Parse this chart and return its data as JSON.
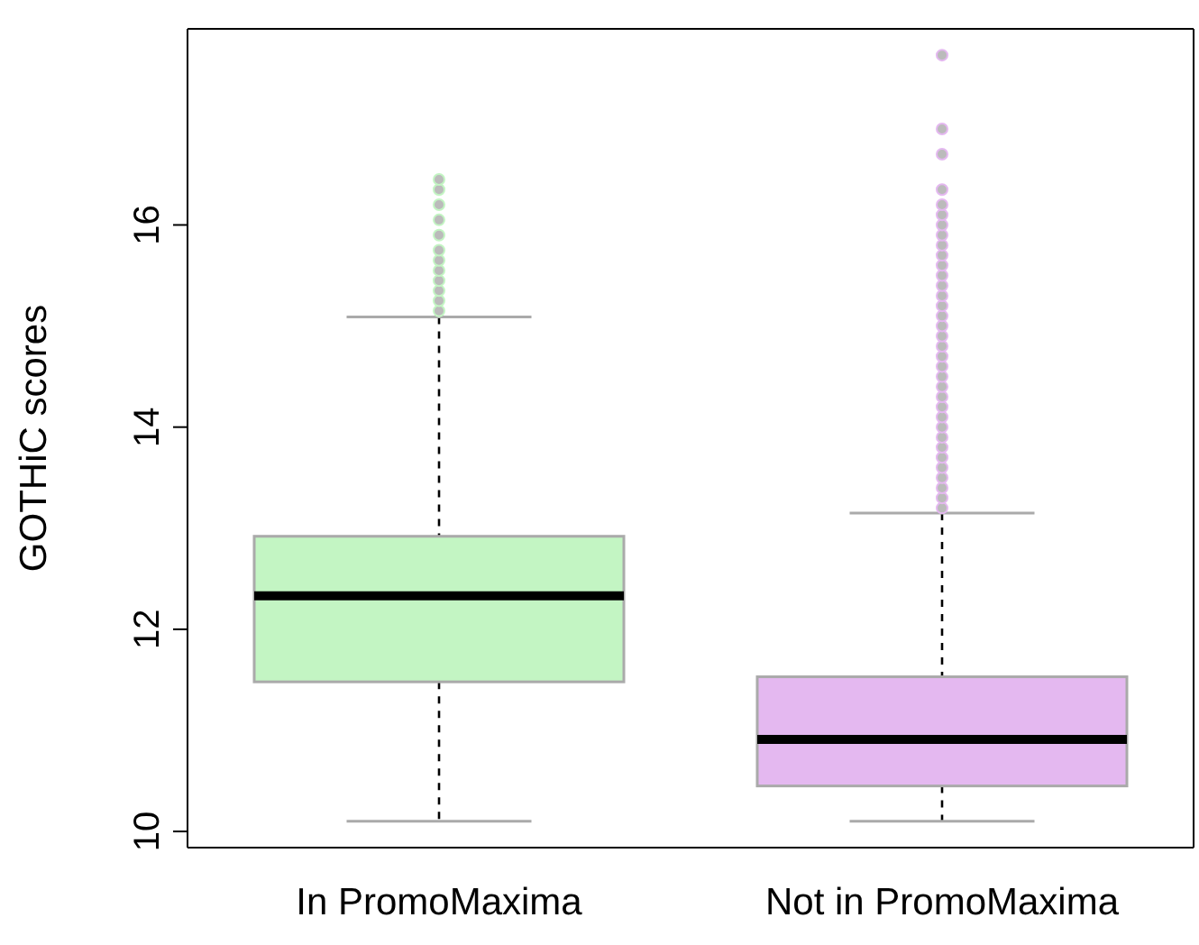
{
  "chart_data": {
    "type": "box",
    "ylabel": "GOTHiC scores",
    "categories": [
      "In PromoMaxima",
      "Not in PromoMaxima"
    ],
    "colors": [
      "#c3f5c3",
      "#e4b8f0"
    ],
    "ylim": [
      9.84,
      17.94
    ],
    "yticks": [
      10,
      12,
      14,
      16
    ],
    "boxes": [
      {
        "low": 10.1,
        "q1": 11.48,
        "median": 12.33,
        "q3": 12.92,
        "high": 15.09,
        "outliers": [
          15.15,
          15.25,
          15.35,
          15.45,
          15.55,
          15.65,
          15.75,
          15.9,
          16.05,
          16.2,
          16.35,
          16.45
        ]
      },
      {
        "low": 10.1,
        "q1": 10.45,
        "median": 10.91,
        "q3": 11.53,
        "high": 13.15,
        "outliers": [
          13.2,
          13.3,
          13.4,
          13.5,
          13.6,
          13.7,
          13.8,
          13.9,
          14.0,
          14.1,
          14.2,
          14.3,
          14.4,
          14.5,
          14.6,
          14.7,
          14.8,
          14.9,
          15.0,
          15.1,
          15.2,
          15.3,
          15.4,
          15.5,
          15.6,
          15.7,
          15.8,
          15.9,
          16.0,
          16.1,
          16.2,
          16.35,
          16.7,
          16.95,
          17.68
        ]
      }
    ]
  }
}
